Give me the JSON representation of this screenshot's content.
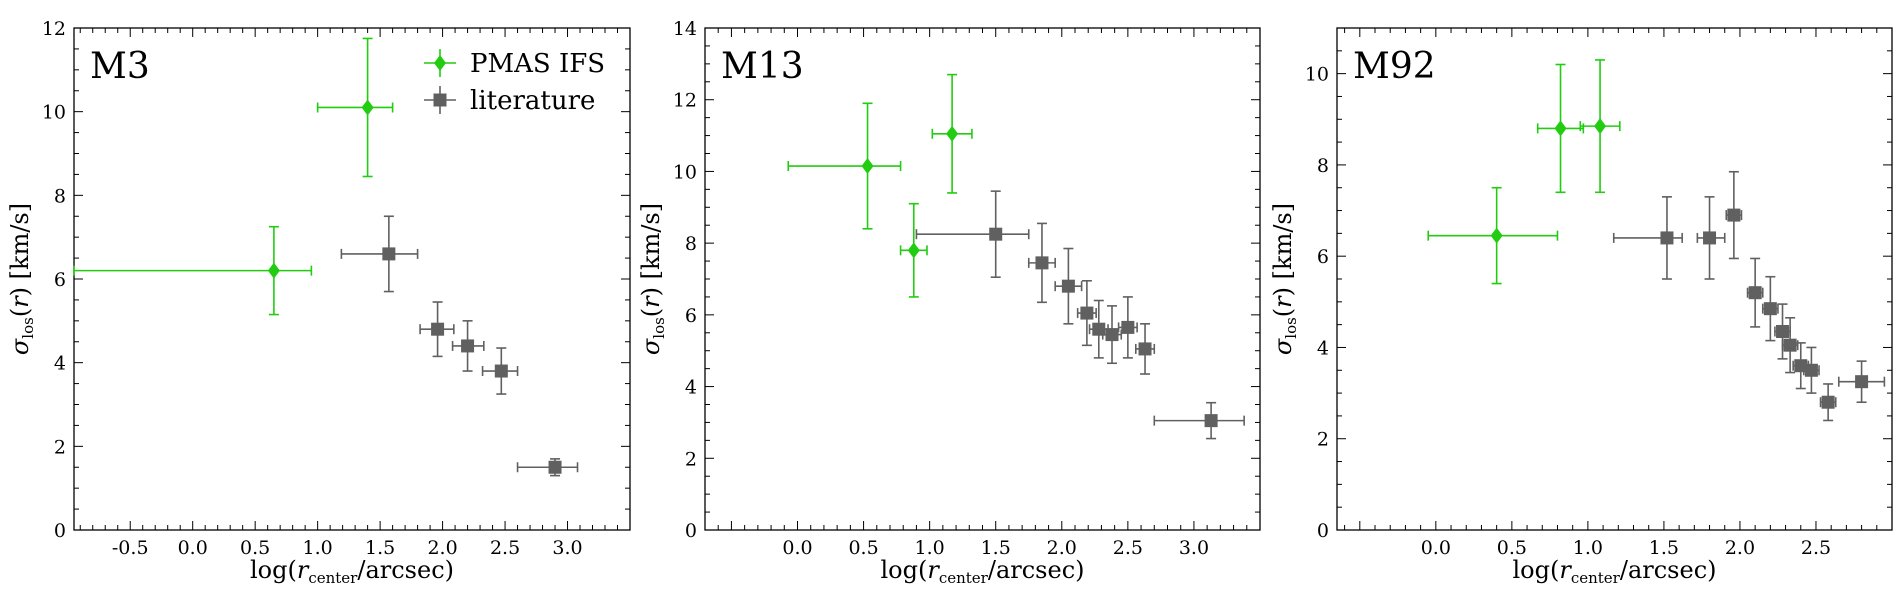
{
  "colors": {
    "pmas": "#22cc11",
    "literature": "#606060",
    "axis": "#000000"
  },
  "legend": {
    "pmas_label": "PMAS IFS",
    "literature_label": "literature",
    "placement": "top-right of first panel"
  },
  "chart_data": [
    {
      "type": "scatter",
      "title": "M3",
      "xlabel": "log(r_center/arcsec)",
      "ylabel": "σ_los(r) [km/s]",
      "xlim": [
        -0.95,
        3.5
      ],
      "ylim": [
        0,
        12
      ],
      "xticks": [
        -0.5,
        0.0,
        0.5,
        1.0,
        1.5,
        2.0,
        2.5,
        3.0
      ],
      "xtick_labels": [
        "-0.5",
        "0.0",
        "0.5",
        "1.0",
        "1.5",
        "2.0",
        "2.5",
        "3.0"
      ],
      "yticks": [
        0,
        2,
        4,
        6,
        8,
        10,
        12
      ],
      "ytick_labels": [
        "0",
        "2",
        "4",
        "6",
        "8",
        "10",
        "12"
      ],
      "series": [
        {
          "name": "PMAS IFS",
          "marker": "diamond",
          "points": [
            {
              "x": 0.65,
              "y": 6.2,
              "xerr": [
                1.6,
                0.3
              ],
              "yerr": [
                1.05,
                1.05
              ]
            },
            {
              "x": 1.4,
              "y": 10.1,
              "xerr": [
                0.4,
                0.2
              ],
              "yerr": [
                1.65,
                1.65
              ]
            }
          ]
        },
        {
          "name": "literature",
          "marker": "square",
          "points": [
            {
              "x": 1.57,
              "y": 6.6,
              "xerr": [
                0.38,
                0.23
              ],
              "yerr": [
                0.9,
                0.9
              ]
            },
            {
              "x": 1.96,
              "y": 4.8,
              "xerr": [
                0.14,
                0.13
              ],
              "yerr": [
                0.65,
                0.65
              ]
            },
            {
              "x": 2.2,
              "y": 4.4,
              "xerr": [
                0.12,
                0.13
              ],
              "yerr": [
                0.6,
                0.6
              ]
            },
            {
              "x": 2.47,
              "y": 3.8,
              "xerr": [
                0.15,
                0.13
              ],
              "yerr": [
                0.55,
                0.55
              ]
            },
            {
              "x": 2.9,
              "y": 1.5,
              "xerr": [
                0.3,
                0.18
              ],
              "yerr": [
                0.2,
                0.2
              ]
            }
          ]
        }
      ]
    },
    {
      "type": "scatter",
      "title": "M13",
      "xlabel": "log(r_center/arcsec)",
      "ylabel": "σ_los(r) [km/s]",
      "xlim": [
        -0.7,
        3.5
      ],
      "ylim": [
        0,
        14
      ],
      "xticks": [
        0.0,
        0.5,
        1.0,
        1.5,
        2.0,
        2.5,
        3.0
      ],
      "xtick_labels": [
        "0.0",
        "0.5",
        "1.0",
        "1.5",
        "2.0",
        "2.5",
        "3.0"
      ],
      "yticks": [
        0,
        2,
        4,
        6,
        8,
        10,
        12,
        14
      ],
      "ytick_labels": [
        "0",
        "2",
        "4",
        "6",
        "8",
        "10",
        "12",
        "14"
      ],
      "series": [
        {
          "name": "PMAS IFS",
          "marker": "diamond",
          "points": [
            {
              "x": 0.53,
              "y": 10.15,
              "xerr": [
                0.6,
                0.25
              ],
              "yerr": [
                1.75,
                1.75
              ]
            },
            {
              "x": 0.88,
              "y": 7.8,
              "xerr": [
                0.1,
                0.1
              ],
              "yerr": [
                1.3,
                1.3
              ]
            },
            {
              "x": 1.17,
              "y": 11.05,
              "xerr": [
                0.15,
                0.15
              ],
              "yerr": [
                1.65,
                1.65
              ]
            }
          ]
        },
        {
          "name": "literature",
          "marker": "square",
          "points": [
            {
              "x": 1.5,
              "y": 8.25,
              "xerr": [
                0.6,
                0.25
              ],
              "yerr": [
                1.2,
                1.2
              ]
            },
            {
              "x": 1.85,
              "y": 7.45,
              "xerr": [
                0.1,
                0.1
              ],
              "yerr": [
                1.1,
                1.1
              ]
            },
            {
              "x": 2.05,
              "y": 6.8,
              "xerr": [
                0.1,
                0.1
              ],
              "yerr": [
                1.05,
                1.05
              ]
            },
            {
              "x": 2.19,
              "y": 6.05,
              "xerr": [
                0.07,
                0.07
              ],
              "yerr": [
                0.9,
                0.9
              ]
            },
            {
              "x": 2.28,
              "y": 5.6,
              "xerr": [
                0.07,
                0.07
              ],
              "yerr": [
                0.8,
                0.8
              ]
            },
            {
              "x": 2.38,
              "y": 5.45,
              "xerr": [
                0.07,
                0.07
              ],
              "yerr": [
                0.8,
                0.8
              ]
            },
            {
              "x": 2.5,
              "y": 5.65,
              "xerr": [
                0.07,
                0.07
              ],
              "yerr": [
                0.85,
                0.85
              ]
            },
            {
              "x": 2.63,
              "y": 5.05,
              "xerr": [
                0.07,
                0.07
              ],
              "yerr": [
                0.7,
                0.7
              ]
            },
            {
              "x": 3.13,
              "y": 3.05,
              "xerr": [
                0.43,
                0.25
              ],
              "yerr": [
                0.5,
                0.5
              ]
            }
          ]
        }
      ]
    },
    {
      "type": "scatter",
      "title": "M92",
      "xlabel": "log(r_center/arcsec)",
      "ylabel": "σ_los(r) [km/s]",
      "xlim": [
        -0.65,
        3.0
      ],
      "ylim": [
        0,
        11
      ],
      "xticks": [
        0.0,
        0.5,
        1.0,
        1.5,
        2.0,
        2.5
      ],
      "xtick_labels": [
        "0.0",
        "0.5",
        "1.0",
        "1.5",
        "2.0",
        "2.5"
      ],
      "yticks": [
        0,
        2,
        4,
        6,
        8,
        10
      ],
      "ytick_labels": [
        "0",
        "2",
        "4",
        "6",
        "8",
        "10"
      ],
      "series": [
        {
          "name": "PMAS IFS",
          "marker": "diamond",
          "points": [
            {
              "x": 0.4,
              "y": 6.45,
              "xerr": [
                0.45,
                0.4
              ],
              "yerr": [
                1.05,
                1.05
              ]
            },
            {
              "x": 0.82,
              "y": 8.8,
              "xerr": [
                0.15,
                0.15
              ],
              "yerr": [
                1.4,
                1.4
              ]
            },
            {
              "x": 1.08,
              "y": 8.85,
              "xerr": [
                0.13,
                0.13
              ],
              "yerr": [
                1.45,
                1.45
              ]
            }
          ]
        },
        {
          "name": "literature",
          "marker": "square",
          "points": [
            {
              "x": 1.52,
              "y": 6.4,
              "xerr": [
                0.35,
                0.1
              ],
              "yerr": [
                0.9,
                0.9
              ]
            },
            {
              "x": 1.8,
              "y": 6.4,
              "xerr": [
                0.08,
                0.1
              ],
              "yerr": [
                0.9,
                0.9
              ]
            },
            {
              "x": 1.96,
              "y": 6.9,
              "xerr": [
                0.05,
                0.05
              ],
              "yerr": [
                0.95,
                0.95
              ]
            },
            {
              "x": 2.1,
              "y": 5.2,
              "xerr": [
                0.05,
                0.05
              ],
              "yerr": [
                0.75,
                0.75
              ]
            },
            {
              "x": 2.2,
              "y": 4.85,
              "xerr": [
                0.05,
                0.05
              ],
              "yerr": [
                0.7,
                0.7
              ]
            },
            {
              "x": 2.28,
              "y": 4.35,
              "xerr": [
                0.05,
                0.05
              ],
              "yerr": [
                0.6,
                0.6
              ]
            },
            {
              "x": 2.33,
              "y": 4.05,
              "xerr": [
                0.05,
                0.05
              ],
              "yerr": [
                0.6,
                0.6
              ]
            },
            {
              "x": 2.4,
              "y": 3.6,
              "xerr": [
                0.05,
                0.05
              ],
              "yerr": [
                0.5,
                0.5
              ]
            },
            {
              "x": 2.47,
              "y": 3.5,
              "xerr": [
                0.05,
                0.05
              ],
              "yerr": [
                0.5,
                0.5
              ]
            },
            {
              "x": 2.58,
              "y": 2.8,
              "xerr": [
                0.05,
                0.05
              ],
              "yerr": [
                0.4,
                0.4
              ]
            },
            {
              "x": 2.8,
              "y": 3.25,
              "xerr": [
                0.15,
                0.15
              ],
              "yerr": [
                0.45,
                0.45
              ]
            }
          ]
        }
      ]
    }
  ]
}
